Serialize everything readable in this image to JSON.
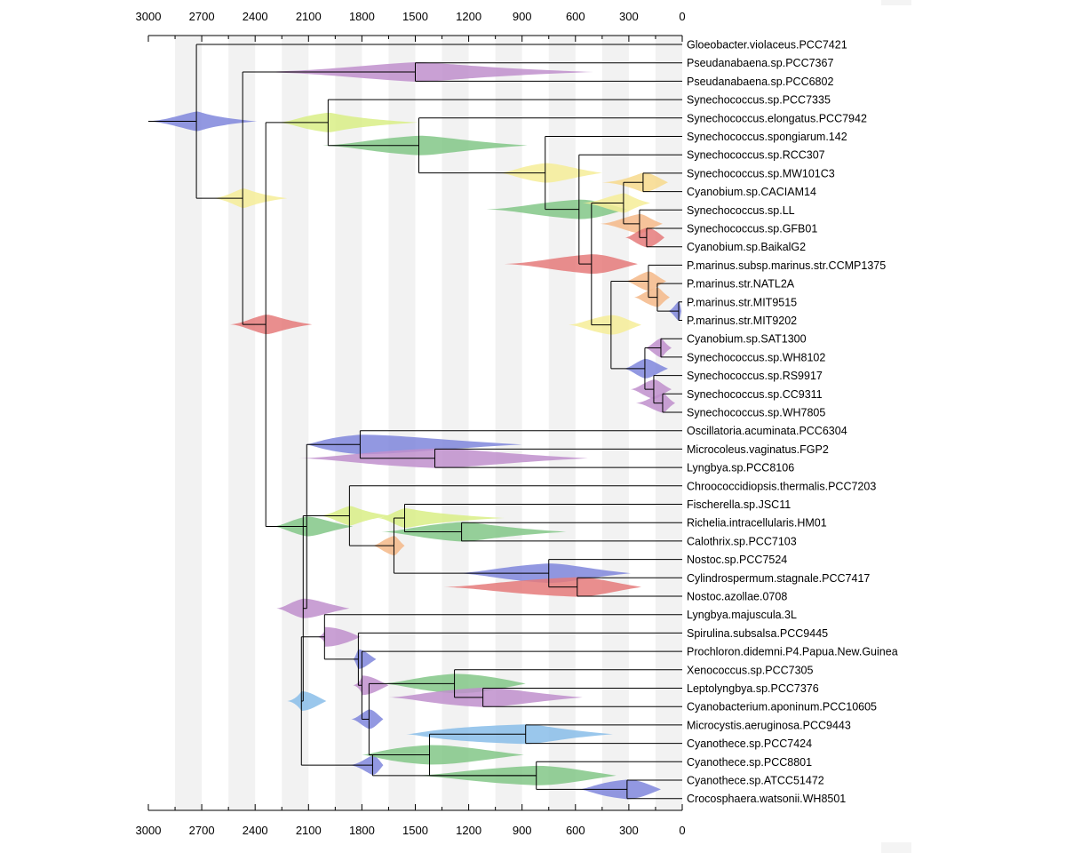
{
  "axis": {
    "ticks": [
      3000,
      2700,
      2400,
      2100,
      1800,
      1500,
      1200,
      900,
      600,
      300,
      0
    ],
    "range": [
      3000,
      0
    ],
    "bands": [
      [
        2850,
        2700
      ],
      [
        2550,
        2400
      ],
      [
        2250,
        2100
      ],
      [
        1950,
        1800
      ],
      [
        1650,
        1500
      ],
      [
        1350,
        1200
      ],
      [
        1050,
        900
      ],
      [
        750,
        600
      ],
      [
        450,
        300
      ],
      [
        150,
        0
      ]
    ]
  },
  "colors": {
    "blue": "#7f86dc",
    "purple": "#c08fcd",
    "green": "#82c787",
    "yellowgreen": "#d9ef86",
    "yellow": "#f6ed98",
    "orange": "#f5b988",
    "red": "#e57a7a",
    "lightblue": "#88bde9",
    "amber": "#f7d98c"
  },
  "taxa": [
    "Gloeobacter.violaceus.PCC7421",
    "Pseudanabaena.sp.PCC7367",
    "Pseudanabaena.sp.PCC6802",
    "Synechococcus.sp.PCC7335",
    "Synechococcus.elongatus.PCC7942",
    "Synechococcus.spongiarum.142",
    "Synechococcus.sp.RCC307",
    "Synechococcus.sp.MW101C3",
    "Cyanobium.sp.CACIAM14",
    "Synechococcus.sp.LL",
    "Synechococcus.sp.GFB01",
    "Cyanobium.sp.BaikalG2",
    "P.marinus.subsp.marinus.str.CCMP1375",
    "P.marinus.str.NATL2A",
    "P.marinus.str.MIT9515",
    "P.marinus.str.MIT9202",
    "Cyanobium.sp.SAT1300",
    "Synechococcus.sp.WH8102",
    "Synechococcus.sp.RS9917",
    "Synechococcus.sp.CC9311",
    "Synechococcus.sp.WH7805",
    "Oscillatoria.acuminata.PCC6304",
    "Microcoleus.vaginatus.FGP2",
    "Lyngbya.sp.PCC8106",
    "Chroococcidiopsis.thermalis.PCC7203",
    "Fischerella.sp.JSC11",
    "Richelia.intracellularis.HM01",
    "Calothrix.sp.PCC7103",
    "Nostoc.sp.PCC7524",
    "Cylindrospermum.stagnale.PCC7417",
    "Nostoc.azollae.0708",
    "Lyngbya.majuscula.3L",
    "Spirulina.subsalsa.PCC9445",
    "Prochloron.didemni.P4.Papua.New.Guinea",
    "Xenococcus.sp.PCC7305",
    "Leptolyngbya.sp.PCC7376",
    "Cyanobacterium.aponinum.PCC10605",
    "Microcystis.aeruginosa.PCC9443",
    "Cyanothece.sp.PCC7424",
    "Cyanothece.sp.PCC8801",
    "Cyanothece.sp.ATCC51472",
    "Crocosphaera.watsonii.WH8501"
  ],
  "nodes": [
    {
      "id": "root",
      "age": 2730,
      "children": [
        "t0",
        "A"
      ],
      "dist": [
        3010,
        2820,
        2670,
        2390
      ],
      "color": "blue"
    },
    {
      "id": "A",
      "age": 2470,
      "children": [
        "P1",
        "B"
      ],
      "dist": [
        2640,
        2520,
        2410,
        2220
      ],
      "color": "yellow"
    },
    {
      "id": "P1",
      "age": 1500,
      "children": [
        "t1",
        "t2"
      ],
      "dist": [
        2400,
        1800,
        1200,
        500
      ],
      "color": "purple"
    },
    {
      "id": "B",
      "age": 2340,
      "children": [
        "C",
        "K"
      ],
      "dist": [
        2540,
        2420,
        2250,
        2080
      ],
      "color": "red"
    },
    {
      "id": "C",
      "age": 1990,
      "children": [
        "t3",
        "D"
      ],
      "dist": [
        2270,
        2140,
        1900,
        1480
      ],
      "color": "yellowgreen"
    },
    {
      "id": "D",
      "age": 1480,
      "children": [
        "t4",
        "E"
      ],
      "dist": [
        2020,
        1750,
        1250,
        870
      ],
      "color": "green"
    },
    {
      "id": "E",
      "age": 770,
      "children": [
        "t5",
        "F"
      ],
      "dist": [
        1030,
        910,
        620,
        450
      ],
      "color": "yellow"
    },
    {
      "id": "F",
      "age": 580,
      "children": [
        "t6",
        "G"
      ],
      "dist": [
        1100,
        820,
        400,
        310
      ],
      "color": "green"
    },
    {
      "id": "G",
      "age": 510,
      "children": [
        "H1",
        "H3"
      ],
      "dist": [
        1000,
        720,
        350,
        250
      ],
      "color": "red"
    },
    {
      "id": "H1",
      "age": 330,
      "children": [
        "H1a",
        "H2"
      ],
      "dist": [
        560,
        420,
        280,
        180
      ],
      "color": "yellow"
    },
    {
      "id": "H1a",
      "age": 220,
      "children": [
        "t7",
        "t8"
      ],
      "dist": [
        450,
        270,
        130,
        80
      ],
      "color": "amber"
    },
    {
      "id": "H2",
      "age": 240,
      "children": [
        "t9",
        "H2b"
      ],
      "dist": [
        460,
        330,
        180,
        110
      ],
      "color": "orange"
    },
    {
      "id": "H2b",
      "age": 200,
      "children": [
        "t10",
        "t11"
      ],
      "dist": [
        320,
        260,
        130,
        100
      ],
      "color": "red"
    },
    {
      "id": "H3",
      "age": 400,
      "children": [
        "I1",
        "I3"
      ],
      "dist": [
        640,
        520,
        300,
        230
      ],
      "color": "yellow"
    },
    {
      "id": "I1",
      "age": 190,
      "children": [
        "t12",
        "I2"
      ],
      "dist": [
        320,
        250,
        140,
        90
      ],
      "color": "orange"
    },
    {
      "id": "I2",
      "age": 140,
      "children": [
        "t13",
        "I2b"
      ],
      "dist": [
        270,
        210,
        110,
        70
      ],
      "color": "orange"
    },
    {
      "id": "I2b",
      "age": 20,
      "children": [
        "t14",
        "t15"
      ],
      "dist": [
        80,
        40,
        10,
        5
      ],
      "color": "blue"
    },
    {
      "id": "I3",
      "age": 210,
      "children": [
        "J1",
        "J2"
      ],
      "dist": [
        330,
        260,
        140,
        80
      ],
      "color": "blue"
    },
    {
      "id": "J1",
      "age": 120,
      "children": [
        "t16",
        "t17"
      ],
      "dist": [
        210,
        160,
        100,
        60
      ],
      "color": "purple"
    },
    {
      "id": "J2",
      "age": 160,
      "children": [
        "t18",
        "J2b"
      ],
      "dist": [
        290,
        220,
        110,
        60
      ],
      "color": "purple"
    },
    {
      "id": "J2b",
      "age": 110,
      "children": [
        "t19",
        "t20"
      ],
      "dist": [
        260,
        170,
        80,
        40
      ],
      "color": "purple"
    },
    {
      "id": "K",
      "age": 2110,
      "children": [
        "L",
        "M"
      ],
      "dist": [
        2300,
        2200,
        1990,
        1850
      ],
      "color": "green"
    },
    {
      "id": "L",
      "age": 1810,
      "children": [
        "t21",
        "L2"
      ],
      "dist": [
        2120,
        2020,
        1370,
        900
      ],
      "color": "blue"
    },
    {
      "id": "L2",
      "age": 1390,
      "children": [
        "t22",
        "t23"
      ],
      "dist": [
        2150,
        1800,
        1020,
        530
      ],
      "color": "purple"
    },
    {
      "id": "M",
      "age": 2130,
      "children": [
        "N",
        "R"
      ],
      "dist": [
        2280,
        2200,
        2000,
        1870
      ],
      "color": "purple"
    },
    {
      "id": "N",
      "age": 1870,
      "children": [
        "t24",
        "O"
      ],
      "dist": [
        2040,
        1930,
        1810,
        1640
      ],
      "color": "yellowgreen"
    },
    {
      "id": "O",
      "age": 1620,
      "children": [
        "P2",
        "Q"
      ],
      "dist": [
        1740,
        1680,
        1590,
        1560
      ],
      "color": "orange"
    },
    {
      "id": "P2",
      "age": 1560,
      "children": [
        "t25",
        "P3"
      ],
      "dist": [
        1710,
        1620,
        1470,
        1000
      ],
      "color": "yellowgreen"
    },
    {
      "id": "P3",
      "age": 1240,
      "children": [
        "t26",
        "t27"
      ],
      "dist": [
        1690,
        1480,
        1060,
        650
      ],
      "color": "green"
    },
    {
      "id": "Q",
      "age": 750,
      "children": [
        "t28",
        "Q2"
      ],
      "dist": [
        1270,
        1020,
        540,
        290
      ],
      "color": "blue"
    },
    {
      "id": "Q2",
      "age": 590,
      "children": [
        "t29",
        "t30"
      ],
      "dist": [
        1340,
        1000,
        390,
        230
      ],
      "color": "red"
    },
    {
      "id": "R",
      "age": 2140,
      "children": [
        "S",
        "U"
      ],
      "dist": [
        2220,
        2150,
        2050,
        2000
      ],
      "color": "lightblue"
    },
    {
      "id": "S",
      "age": 2010,
      "children": [
        "t31",
        "S2"
      ],
      "dist": [
        2050,
        2000,
        1860,
        1810
      ],
      "color": "purple"
    },
    {
      "id": "S2",
      "age": 1820,
      "children": [
        "t32",
        "S3"
      ],
      "dist": [
        1850,
        1830,
        1760,
        1720
      ],
      "color": "blue"
    },
    {
      "id": "S3",
      "age": 1800,
      "children": [
        "t33",
        "T"
      ],
      "dist": [
        1850,
        1800,
        1700,
        1650
      ],
      "color": "purple"
    },
    {
      "id": "T",
      "age": 1760,
      "children": [
        "T2",
        "V"
      ],
      "dist": [
        1860,
        1800,
        1710,
        1680
      ],
      "color": "blue"
    },
    {
      "id": "T2",
      "age": 1280,
      "children": [
        "t34",
        "T3"
      ],
      "dist": [
        1690,
        1500,
        1000,
        880
      ],
      "color": "green"
    },
    {
      "id": "T3",
      "age": 1120,
      "children": [
        "t35",
        "t36"
      ],
      "dist": [
        1650,
        1420,
        860,
        560
      ],
      "color": "purple"
    },
    {
      "id": "U",
      "age": 1740,
      "children": [
        "V",
        "W"
      ],
      "dist": [
        1870,
        1780,
        1700,
        1680
      ],
      "color": "blue"
    },
    {
      "id": "V",
      "age": 1420,
      "children": [
        "V2",
        "W"
      ],
      "dist": [
        1800,
        1680,
        1100,
        890
      ],
      "color": "green"
    },
    {
      "id": "V2",
      "age": 880,
      "children": [
        "t37",
        "t38"
      ],
      "dist": [
        1550,
        1400,
        700,
        390
      ],
      "color": "lightblue"
    },
    {
      "id": "W",
      "age": 820,
      "children": [
        "t39",
        "W2"
      ],
      "dist": [
        1500,
        1200,
        550,
        370
      ],
      "color": "green"
    },
    {
      "id": "W2",
      "age": 310,
      "children": [
        "t40",
        "t41"
      ],
      "dist": [
        580,
        480,
        180,
        120
      ],
      "color": "blue"
    }
  ]
}
